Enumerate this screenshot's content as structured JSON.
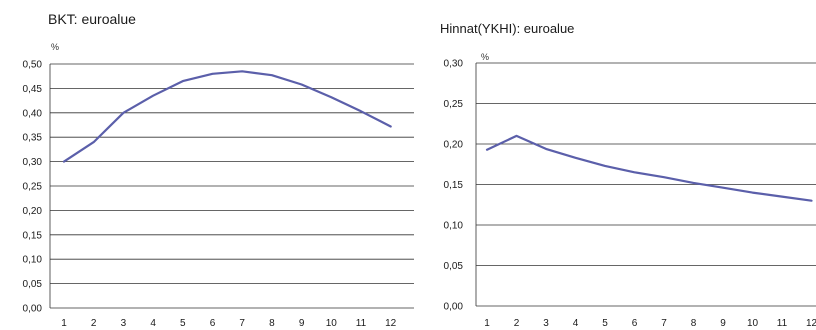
{
  "chart_data": [
    {
      "type": "line",
      "title": "BKT: euroalue",
      "unit_label": "%",
      "categories": [
        "1",
        "2",
        "3",
        "4",
        "5",
        "6",
        "7",
        "8",
        "9",
        "10",
        "11",
        "12"
      ],
      "series": [
        {
          "values": [
            0.3,
            0.34,
            0.4,
            0.435,
            0.465,
            0.48,
            0.485,
            0.477,
            0.458,
            0.432,
            0.403,
            0.372
          ]
        }
      ],
      "ylim": [
        0.0,
        0.5
      ],
      "yticks": [
        "0,00",
        "0,05",
        "0,10",
        "0,15",
        "0,20",
        "0,25",
        "0,30",
        "0,35",
        "0,40",
        "0,45",
        "0,50"
      ],
      "grid": true,
      "line_color": "#5b5faa"
    },
    {
      "type": "line",
      "title": "Hinnat(YKHI): euroalue",
      "unit_label": "%",
      "categories": [
        "1",
        "2",
        "3",
        "4",
        "5",
        "6",
        "7",
        "8",
        "9",
        "10",
        "11",
        "12"
      ],
      "series": [
        {
          "values": [
            0.193,
            0.21,
            0.194,
            0.183,
            0.173,
            0.165,
            0.159,
            0.152,
            0.146,
            0.14,
            0.135,
            0.13
          ]
        }
      ],
      "ylim": [
        0.0,
        0.3
      ],
      "yticks": [
        "0,00",
        "0,05",
        "0,10",
        "0,15",
        "0,20",
        "0,25",
        "0,30"
      ],
      "grid": true,
      "line_color": "#5b5faa"
    }
  ]
}
